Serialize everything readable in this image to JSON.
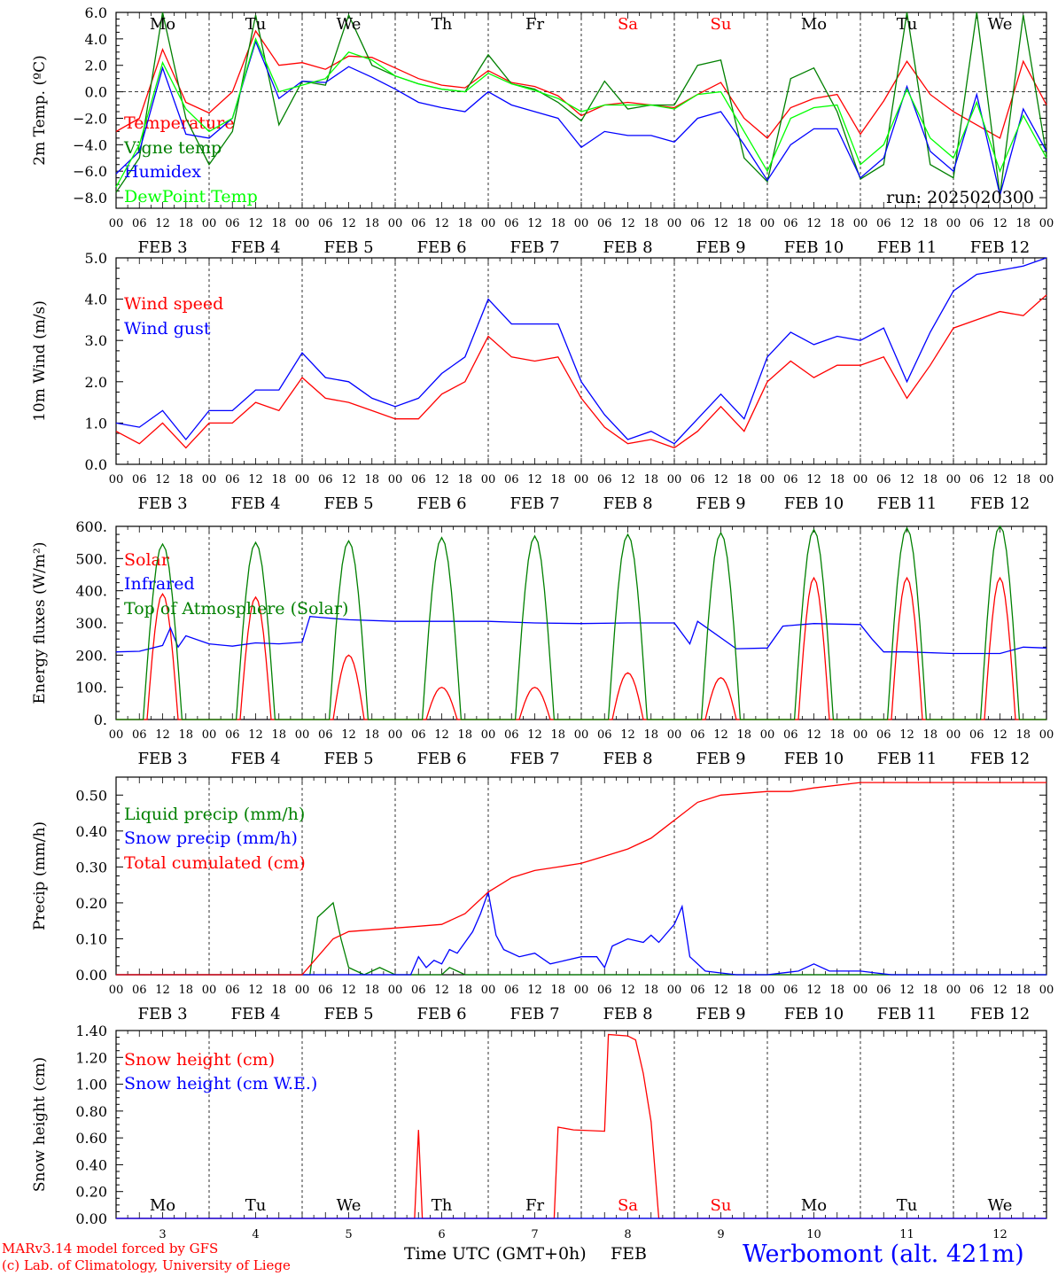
{
  "days": [
    {
      "abbr": "Mo",
      "color": "#000000",
      "date": "FEB",
      "num": "3"
    },
    {
      "abbr": "Tu",
      "color": "#000000",
      "date": "FEB",
      "num": "4"
    },
    {
      "abbr": "We",
      "color": "#000000",
      "date": "FEB",
      "num": "5"
    },
    {
      "abbr": "Th",
      "color": "#000000",
      "date": "FEB",
      "num": "6"
    },
    {
      "abbr": "Fr",
      "color": "#000000",
      "date": "FEB",
      "num": "7"
    },
    {
      "abbr": "Sa",
      "color": "#ff0000",
      "date": "FEB",
      "num": "8"
    },
    {
      "abbr": "Su",
      "color": "#ff0000",
      "date": "FEB",
      "num": "9"
    },
    {
      "abbr": "Mo",
      "color": "#000000",
      "date": "FEB",
      "num": "10"
    },
    {
      "abbr": "Tu",
      "color": "#000000",
      "date": "FEB",
      "num": "11"
    },
    {
      "abbr": "We",
      "color": "#000000",
      "date": "FEB",
      "num": "12"
    }
  ],
  "hour_labels": [
    "00",
    "06",
    "12",
    "18"
  ],
  "final_hour_label": "00",
  "run_label": "run: 2025020300",
  "x_axis_title": "Time UTC (GMT+0h)",
  "x_axis_month": "FEB",
  "footer": {
    "model": "MARv3.14 model forced by GFS",
    "credit": "(c) Lab. of Climatology, University of Liege",
    "station": "Werbomont (alt. 421m)"
  },
  "chart_data": [
    {
      "type": "line",
      "ylabel": "2m Temp. (ºC)",
      "ylim": [
        -8.8,
        6.0
      ],
      "yticks": [
        "6.0",
        "4.0",
        "2.0",
        "0.0",
        "−2.0",
        "−4.0",
        "−6.0",
        "−8.0"
      ],
      "ytick_values": [
        6,
        4,
        2,
        0,
        -2,
        -4,
        -6,
        -8
      ],
      "zero_line": 0,
      "x_unit": "hours since FEB 3 00 UTC",
      "series": [
        {
          "name": "Temperature",
          "color": "#ff0000",
          "x": [
            0,
            6,
            12,
            18,
            24,
            30,
            36,
            42,
            48,
            54,
            60,
            66,
            72,
            78,
            84,
            90,
            96,
            102,
            108,
            114,
            120,
            126,
            132,
            138,
            144,
            150,
            156,
            162,
            168,
            174,
            180,
            186,
            192,
            198,
            204,
            210,
            216,
            222,
            228,
            234,
            240
          ],
          "y": [
            -3.0,
            -2.0,
            3.2,
            -0.8,
            -1.6,
            0.0,
            4.6,
            2.0,
            2.2,
            1.7,
            2.7,
            2.6,
            1.8,
            1.0,
            0.5,
            0.3,
            1.6,
            0.7,
            0.4,
            -0.3,
            -1.8,
            -1.0,
            -0.8,
            -1.0,
            -1.2,
            -0.2,
            0.7,
            -2.0,
            -3.5,
            -1.2,
            -0.5,
            -0.2,
            -3.2,
            -0.7,
            2.3,
            -0.2,
            -1.5,
            -2.5,
            -3.5,
            2.3,
            -1.0
          ]
        },
        {
          "name": "Vigne temp",
          "color": "#008000",
          "x": [
            0,
            6,
            12,
            18,
            24,
            30,
            36,
            42,
            48,
            54,
            60,
            66,
            72,
            78,
            84,
            90,
            96,
            102,
            108,
            114,
            120,
            126,
            132,
            138,
            144,
            150,
            156,
            162,
            168,
            174,
            180,
            186,
            192,
            198,
            204,
            210,
            216,
            222,
            228,
            234,
            240
          ],
          "y": [
            -7.6,
            -5.0,
            6.0,
            -2.0,
            -5.5,
            -3.0,
            5.8,
            -2.5,
            0.8,
            0.5,
            5.8,
            2.0,
            1.2,
            0.6,
            0.2,
            0.0,
            2.8,
            0.6,
            0.2,
            -0.8,
            -2.2,
            0.8,
            -1.3,
            -1.0,
            -1.0,
            2.0,
            2.4,
            -5.0,
            -6.8,
            1.0,
            1.8,
            -1.5,
            -6.6,
            -5.5,
            6.0,
            -5.5,
            -6.5,
            6.2,
            -7.8,
            5.8,
            -4.8
          ]
        },
        {
          "name": "Humidex",
          "color": "#0000ff",
          "x": [
            0,
            6,
            12,
            18,
            24,
            30,
            36,
            42,
            48,
            54,
            60,
            66,
            72,
            78,
            84,
            90,
            96,
            102,
            108,
            114,
            120,
            126,
            132,
            138,
            144,
            150,
            156,
            162,
            168,
            174,
            180,
            186,
            192,
            198,
            204,
            210,
            216,
            222,
            228,
            234,
            240
          ],
          "y": [
            -6.2,
            -4.5,
            1.8,
            -3.2,
            -3.5,
            -2.0,
            3.8,
            -0.5,
            0.8,
            0.7,
            1.9,
            1.1,
            0.2,
            -0.8,
            -1.2,
            -1.5,
            0.0,
            -1.0,
            -1.5,
            -2.0,
            -4.2,
            -3.0,
            -3.3,
            -3.3,
            -3.8,
            -2.0,
            -1.5,
            -4.0,
            -6.7,
            -4.0,
            -2.8,
            -2.8,
            -6.5,
            -5.0,
            0.4,
            -4.5,
            -6.0,
            -0.2,
            -7.8,
            -1.3,
            -4.5
          ]
        },
        {
          "name": "DewPoint Temp",
          "color": "#00ff00",
          "x": [
            0,
            6,
            12,
            18,
            24,
            30,
            36,
            42,
            48,
            54,
            60,
            66,
            72,
            78,
            84,
            90,
            96,
            102,
            108,
            114,
            120,
            126,
            132,
            138,
            144,
            150,
            156,
            162,
            168,
            174,
            180,
            186,
            192,
            198,
            204,
            210,
            216,
            222,
            228,
            234,
            240
          ],
          "y": [
            -7.2,
            -4.0,
            2.2,
            -1.3,
            -3.0,
            -2.0,
            4.0,
            0.0,
            0.5,
            1.0,
            3.0,
            2.4,
            1.2,
            0.6,
            0.2,
            0.0,
            1.4,
            0.6,
            0.1,
            -0.5,
            -1.5,
            -1.0,
            -1.0,
            -1.0,
            -1.3,
            -0.2,
            0.0,
            -3.0,
            -6.0,
            -2.0,
            -1.2,
            -1.0,
            -5.5,
            -4.0,
            0.2,
            -3.5,
            -5.0,
            -0.8,
            -6.0,
            -1.8,
            -5.0
          ]
        }
      ]
    },
    {
      "type": "line",
      "ylabel": "10m Wind (m/s)",
      "ylim": [
        0,
        5.0
      ],
      "yticks": [
        "5.0",
        "4.0",
        "3.0",
        "2.0",
        "1.0",
        "0.0"
      ],
      "ytick_values": [
        5,
        4,
        3,
        2,
        1,
        0
      ],
      "ref_line": 5.0,
      "x_unit": "hours since FEB 3 00 UTC",
      "series": [
        {
          "name": "Wind speed",
          "color": "#ff0000",
          "x": [
            0,
            6,
            12,
            18,
            24,
            30,
            36,
            42,
            48,
            54,
            60,
            66,
            72,
            78,
            84,
            90,
            96,
            102,
            108,
            114,
            120,
            126,
            132,
            138,
            144,
            150,
            156,
            162,
            168,
            174,
            180,
            186,
            192,
            198,
            204,
            210,
            216,
            222,
            228,
            234,
            240
          ],
          "y": [
            0.8,
            0.5,
            1.0,
            0.4,
            1.0,
            1.0,
            1.5,
            1.3,
            2.1,
            1.6,
            1.5,
            1.3,
            1.1,
            1.1,
            1.7,
            2.0,
            3.1,
            2.6,
            2.5,
            2.6,
            1.6,
            0.9,
            0.5,
            0.6,
            0.4,
            0.8,
            1.4,
            0.8,
            2.0,
            2.5,
            2.1,
            2.4,
            2.4,
            2.6,
            1.6,
            2.4,
            3.3,
            3.5,
            3.7,
            3.6,
            4.1
          ]
        },
        {
          "name": "Wind gust",
          "color": "#0000ff",
          "x": [
            0,
            6,
            12,
            18,
            24,
            30,
            36,
            42,
            48,
            54,
            60,
            66,
            72,
            78,
            84,
            90,
            96,
            102,
            108,
            114,
            120,
            126,
            132,
            138,
            144,
            150,
            156,
            162,
            168,
            174,
            180,
            186,
            192,
            198,
            204,
            210,
            216,
            222,
            228,
            234,
            240
          ],
          "y": [
            1.0,
            0.9,
            1.3,
            0.6,
            1.3,
            1.3,
            1.8,
            1.8,
            2.7,
            2.1,
            2.0,
            1.6,
            1.4,
            1.6,
            2.2,
            2.6,
            4.0,
            3.4,
            3.4,
            3.4,
            2.0,
            1.2,
            0.6,
            0.8,
            0.5,
            1.1,
            1.7,
            1.1,
            2.6,
            3.2,
            2.9,
            3.1,
            3.0,
            3.3,
            2.0,
            3.2,
            4.2,
            4.6,
            4.7,
            4.8,
            5.3
          ]
        }
      ]
    },
    {
      "type": "line",
      "ylabel": "Energy fluxes (W/m²)",
      "ylim": [
        0,
        600
      ],
      "yticks": [
        "600.",
        "500.",
        "400.",
        "300.",
        "200.",
        "100.",
        "0."
      ],
      "ytick_values": [
        600,
        500,
        400,
        300,
        200,
        100,
        0
      ],
      "x_unit": "hours since FEB 3 00 UTC",
      "series": [
        {
          "name": "Solar",
          "color": "#ff0000",
          "daily_peak": [
            390,
            380,
            200,
            100,
            100,
            145,
            130,
            440,
            440,
            440
          ]
        },
        {
          "name": "Infrared",
          "color": "#0000ff",
          "x": [
            0,
            6,
            12,
            14,
            16,
            18,
            24,
            30,
            36,
            42,
            48,
            50,
            52,
            60,
            72,
            84,
            96,
            108,
            120,
            132,
            144,
            148,
            150,
            160,
            168,
            172,
            180,
            192,
            195,
            198,
            204,
            216,
            228,
            234,
            240
          ],
          "y": [
            210,
            212,
            230,
            285,
            225,
            260,
            235,
            228,
            238,
            235,
            240,
            320,
            318,
            310,
            305,
            305,
            305,
            300,
            298,
            300,
            300,
            235,
            305,
            220,
            222,
            290,
            298,
            295,
            250,
            210,
            210,
            205,
            205,
            225,
            222
          ]
        },
        {
          "name": "Top of Atmosphere (Solar)",
          "color": "#008000",
          "daily_peak": [
            545,
            550,
            555,
            565,
            570,
            575,
            580,
            590,
            595,
            605
          ]
        }
      ]
    },
    {
      "type": "line",
      "ylabel": "Precip (mm/h)",
      "ylim": [
        0,
        0.55
      ],
      "yticks": [
        "0.50",
        "0.40",
        "0.30",
        "0.20",
        "0.10",
        "0.00"
      ],
      "ytick_values": [
        0.5,
        0.4,
        0.3,
        0.2,
        0.1,
        0.0
      ],
      "x_unit": "hours since FEB 3 00 UTC",
      "series": [
        {
          "name": "Liquid precip (mm/h)",
          "color": "#008000",
          "x": [
            0,
            48,
            50,
            52,
            54,
            56,
            58,
            60,
            64,
            68,
            72,
            84,
            86,
            88,
            90,
            96,
            144,
            240
          ],
          "y": [
            0,
            0,
            0,
            0.16,
            0.18,
            0.2,
            0.1,
            0.02,
            0,
            0.02,
            0,
            0,
            0.02,
            0.01,
            0,
            0,
            0,
            0
          ]
        },
        {
          "name": "Snow precip (mm/h)",
          "color": "#0000ff",
          "x": [
            0,
            72,
            76,
            78,
            80,
            82,
            84,
            86,
            88,
            90,
            92,
            94,
            96,
            98,
            100,
            104,
            108,
            112,
            116,
            120,
            124,
            126,
            128,
            132,
            136,
            138,
            140,
            144,
            146,
            148,
            152,
            156,
            160,
            168,
            176,
            180,
            184,
            192,
            196,
            200,
            240
          ],
          "y": [
            0,
            0,
            0,
            0.05,
            0.02,
            0.04,
            0.03,
            0.07,
            0.06,
            0.09,
            0.12,
            0.17,
            0.23,
            0.11,
            0.07,
            0.05,
            0.06,
            0.03,
            0.04,
            0.05,
            0.05,
            0.02,
            0.08,
            0.1,
            0.09,
            0.11,
            0.09,
            0.14,
            0.19,
            0.05,
            0.01,
            0.005,
            0,
            0,
            0.01,
            0.03,
            0.01,
            0.01,
            0.005,
            0,
            0
          ]
        },
        {
          "name": "Total cumulated (cm)",
          "color": "#ff0000",
          "x": [
            0,
            48,
            52,
            56,
            60,
            66,
            72,
            78,
            84,
            90,
            96,
            102,
            108,
            114,
            120,
            126,
            132,
            138,
            144,
            150,
            156,
            168,
            174,
            180,
            192,
            210,
            240
          ],
          "y": [
            0,
            0,
            0.05,
            0.1,
            0.12,
            0.125,
            0.13,
            0.135,
            0.14,
            0.17,
            0.23,
            0.27,
            0.29,
            0.3,
            0.31,
            0.33,
            0.35,
            0.38,
            0.43,
            0.48,
            0.5,
            0.51,
            0.51,
            0.52,
            0.535,
            0.535,
            0.535
          ]
        }
      ]
    },
    {
      "type": "line",
      "ylabel": "Snow height (cm)",
      "ylim": [
        0,
        1.4
      ],
      "yticks": [
        "1.40",
        "1.20",
        "1.00",
        "0.80",
        "0.60",
        "0.40",
        "0.20",
        "0.00"
      ],
      "ytick_values": [
        1.4,
        1.2,
        1.0,
        0.8,
        0.6,
        0.4,
        0.2,
        0.0
      ],
      "x_unit": "hours since FEB 3 00 UTC",
      "series": [
        {
          "name": "Snow height (cm)",
          "color": "#ff0000",
          "x": [
            0,
            77,
            78,
            79,
            113,
            114,
            118,
            126,
            127,
            132,
            134,
            136,
            138,
            140,
            141,
            240
          ],
          "y": [
            0,
            0,
            0.66,
            0,
            0,
            0.68,
            0.66,
            0.65,
            1.37,
            1.36,
            1.33,
            1.08,
            0.72,
            0,
            0,
            0
          ]
        },
        {
          "name": "Snow height (cm W.E.)",
          "color": "#0000ff",
          "x": [
            0,
            240
          ],
          "y": [
            0,
            0
          ]
        }
      ]
    }
  ]
}
